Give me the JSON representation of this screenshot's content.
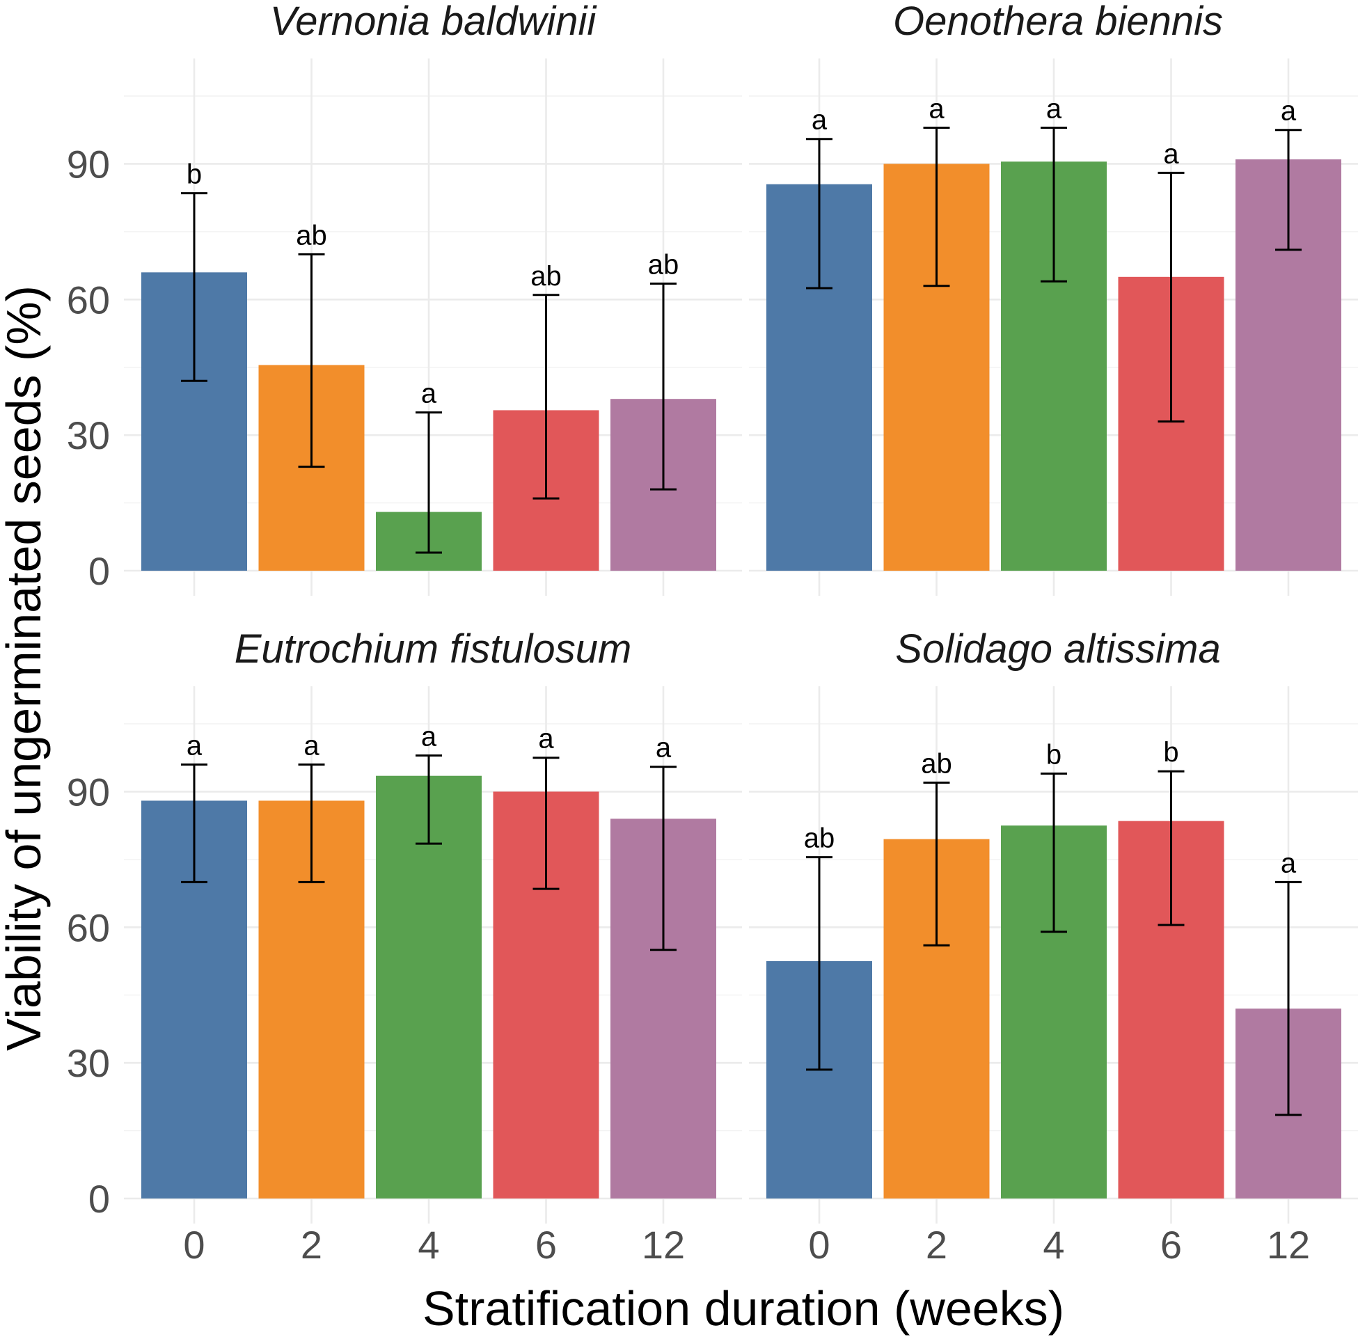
{
  "chart_data": {
    "type": "bar",
    "xlabel": "Stratification duration (weeks)",
    "ylabel": "Viability of ungerminated seeds (%)",
    "ylim": [
      0,
      105
    ],
    "y_ticks": [
      0,
      30,
      60,
      90
    ],
    "categories": [
      "0",
      "2",
      "4",
      "6",
      "12"
    ],
    "colors": [
      "#4e79a7",
      "#f28e2b",
      "#59a14f",
      "#e15759",
      "#b07aa1"
    ],
    "grid": true,
    "legend": "none",
    "panels": [
      {
        "title": "Vernonia baldwinii",
        "values": [
          66,
          45.5,
          13,
          35.5,
          38
        ],
        "error_low": [
          42,
          23,
          4,
          16,
          18
        ],
        "error_high": [
          83.5,
          70,
          35,
          61,
          63.5
        ],
        "letters": [
          "b",
          "ab",
          "a",
          "ab",
          "ab"
        ]
      },
      {
        "title": "Oenothera biennis",
        "values": [
          85.5,
          90,
          90.5,
          65,
          91
        ],
        "error_low": [
          62.5,
          63,
          64,
          33,
          71
        ],
        "error_high": [
          95.5,
          98,
          98,
          88,
          97.5
        ],
        "letters": [
          "a",
          "a",
          "a",
          "a",
          "a"
        ]
      },
      {
        "title": "Eutrochium fistulosum",
        "values": [
          88,
          88,
          93.5,
          90,
          84
        ],
        "error_low": [
          70,
          70,
          78.5,
          68.5,
          55
        ],
        "error_high": [
          96,
          96,
          98,
          97.5,
          95.5
        ],
        "letters": [
          "a",
          "a",
          "a",
          "a",
          "a"
        ]
      },
      {
        "title": "Solidago altissima",
        "values": [
          52.5,
          79.5,
          82.5,
          83.5,
          42
        ],
        "error_low": [
          28.5,
          56,
          59,
          60.5,
          18.5
        ],
        "error_high": [
          75.5,
          92,
          94,
          94.5,
          70
        ],
        "letters": [
          "ab",
          "ab",
          "b",
          "b",
          "a"
        ]
      }
    ]
  }
}
